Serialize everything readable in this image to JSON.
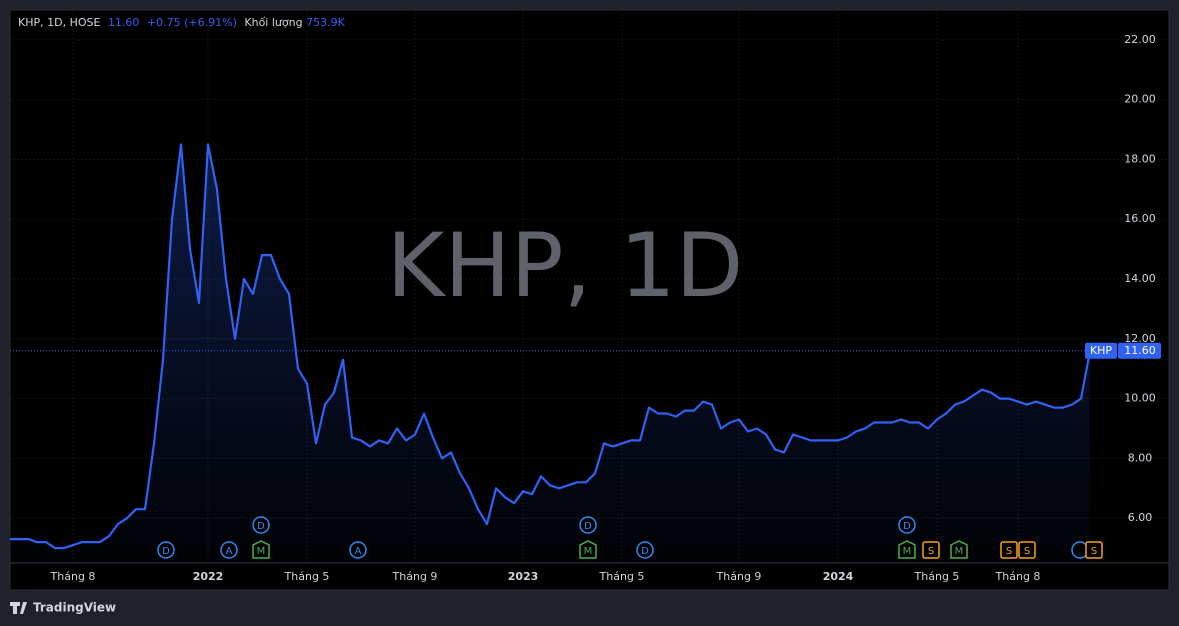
{
  "chart_data": {
    "type": "line",
    "header": {
      "symbol": "KHP, 1D, HOSE",
      "price": "11.60",
      "change": "+0.75 (+6.91%)",
      "volume_label": "Khối lượng",
      "volume": "753.9K"
    },
    "watermark": "KHP, 1D",
    "color": "#2f62f5",
    "categories": [
      null,
      null,
      null,
      null,
      null,
      null,
      null,
      "Tháng 8",
      null,
      null,
      null,
      null,
      null,
      null,
      null,
      null,
      null,
      null,
      null,
      null,
      null,
      null,
      "2022",
      null,
      null,
      null,
      null,
      null,
      null,
      null,
      null,
      null,
      null,
      "Tháng 5",
      null,
      null,
      null,
      null,
      null,
      null,
      null,
      null,
      null,
      null,
      null,
      "Tháng 9",
      null,
      null,
      null,
      null,
      null,
      null,
      null,
      null,
      null,
      null,
      null,
      "2023",
      null,
      null,
      null,
      null,
      null,
      null,
      null,
      null,
      null,
      null,
      "Tháng 5",
      null,
      null,
      null,
      null,
      null,
      null,
      null,
      null,
      null,
      null,
      null,
      null,
      "Tháng 9",
      null,
      null,
      null,
      null,
      null,
      null,
      null,
      null,
      null,
      null,
      "2024",
      null,
      null,
      null,
      null,
      null,
      null,
      null,
      null,
      null,
      null,
      "Tháng 5",
      null,
      null,
      null,
      null,
      null,
      null,
      null,
      null,
      "Tháng 8",
      null,
      null,
      null,
      null,
      null,
      null,
      null,
      null
    ],
    "values": [
      5.3,
      5.3,
      5.3,
      5.2,
      5.2,
      5.0,
      5.0,
      5.1,
      5.2,
      5.2,
      5.2,
      5.4,
      5.8,
      6.0,
      6.3,
      6.3,
      8.5,
      11.3,
      16.0,
      18.5,
      15.0,
      13.2,
      18.5,
      17.0,
      14.0,
      12.0,
      14.0,
      13.5,
      14.8,
      14.8,
      14.0,
      13.5,
      11.0,
      10.5,
      8.5,
      9.8,
      10.2,
      11.3,
      8.7,
      8.6,
      8.4,
      8.6,
      8.5,
      9.0,
      8.6,
      8.8,
      9.5,
      8.7,
      8.0,
      8.2,
      7.5,
      7.0,
      6.3,
      5.8,
      7.0,
      6.7,
      6.5,
      6.9,
      6.8,
      7.4,
      7.1,
      7.0,
      7.1,
      7.2,
      7.2,
      7.5,
      8.5,
      8.4,
      8.5,
      8.6,
      8.6,
      9.7,
      9.5,
      9.5,
      9.4,
      9.6,
      9.6,
      9.9,
      9.8,
      9.0,
      9.2,
      9.3,
      8.9,
      9.0,
      8.8,
      8.3,
      8.2,
      8.8,
      8.7,
      8.6,
      8.6,
      8.6,
      8.6,
      8.7,
      8.9,
      9.0,
      9.2,
      9.2,
      9.2,
      9.3,
      9.2,
      9.2,
      9.0,
      9.3,
      9.5,
      9.8,
      9.9,
      10.1,
      10.3,
      10.2,
      10.0,
      10.0,
      9.9,
      9.8,
      9.9,
      9.8,
      9.7,
      9.7,
      9.8,
      10.0,
      11.6
    ],
    "last_label": {
      "symbol": "KHP",
      "price": "11.60"
    },
    "ylim": [
      4.5,
      23
    ],
    "yticks": [
      {
        "value": 6,
        "label": "6.00"
      },
      {
        "value": 8,
        "label": "8.00"
      },
      {
        "value": 10,
        "label": "10.00"
      },
      {
        "value": 12,
        "label": "12.00"
      },
      {
        "value": 14,
        "label": "14.00"
      },
      {
        "value": 16,
        "label": "16.00"
      },
      {
        "value": 18,
        "label": "18.00"
      },
      {
        "value": 20,
        "label": "20.00"
      },
      {
        "value": 22,
        "label": "22.00"
      }
    ],
    "grid": true,
    "events": [
      {
        "letter": "D"
      },
      {
        "letter": "A"
      },
      {
        "letter": "M"
      },
      {
        "letter": "A"
      },
      {
        "letter": "M"
      },
      {
        "letter": "D"
      },
      {
        "letter": "M"
      },
      {
        "letter": "S"
      },
      {
        "letter": "M"
      },
      {
        "letter": "S"
      },
      {
        "letter": "S"
      },
      {
        "letter": "S"
      },
      {
        "letter": "D"
      },
      {
        "letter": "D"
      },
      {
        "letter": "D"
      }
    ]
  },
  "footer": {
    "brand": "TradingView"
  }
}
